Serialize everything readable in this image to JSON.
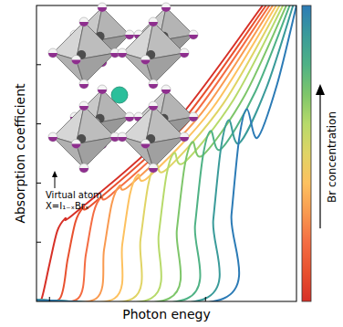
{
  "chart_data": {
    "type": "line",
    "xlabel": "Photon enegy",
    "ylabel": "Absorption coefficient",
    "xlim": [
      0,
      100
    ],
    "ylim": [
      0,
      100
    ],
    "xticks": [
      5,
      65
    ],
    "yticks": [
      20,
      40,
      60,
      80
    ],
    "tick_labels": false,
    "grid": false,
    "colorbar": {
      "label": "Br concentration"
    },
    "annotations": [
      {
        "text": "Virtual atom"
      },
      {
        "text": "X=I₁₋ₓBrₓ"
      }
    ],
    "series": [
      {
        "color": "#d73027",
        "x": [
          0,
          2,
          5,
          8,
          11,
          15,
          51,
          87
        ],
        "values": [
          0.5,
          1,
          12.6,
          23.8,
          28,
          30,
          58,
          100
        ]
      },
      {
        "color": "#e8512f",
        "x": [
          0,
          9,
          12,
          15,
          18,
          22,
          55.2,
          88.3
        ],
        "values": [
          0.5,
          1,
          14.3,
          26.9,
          31.7,
          33.2,
          59.9,
          100
        ]
      },
      {
        "color": "#f46d43",
        "x": [
          0,
          16,
          19,
          22,
          25,
          29,
          59.3,
          89.6
        ],
        "values": [
          0.5,
          1,
          15.9,
          30.1,
          35.4,
          36.3,
          61.8,
          100
        ]
      },
      {
        "color": "#f99a50",
        "x": [
          0,
          23,
          26,
          29,
          32,
          36,
          63.5,
          90.9
        ],
        "values": [
          0.5,
          1,
          17.6,
          33.2,
          39.1,
          39.3,
          63.6,
          100
        ]
      },
      {
        "color": "#fdc15f",
        "x": [
          0,
          30,
          33,
          36,
          39,
          43,
          67.6,
          92.2
        ],
        "values": [
          0.5,
          1,
          19.3,
          36.4,
          42.8,
          42,
          65.2,
          100
        ]
      },
      {
        "color": "#e0d465",
        "x": [
          0,
          37,
          40,
          43,
          46,
          50,
          71.8,
          93.5
        ],
        "values": [
          0.5,
          1,
          20.9,
          39.5,
          46.5,
          44.6,
          66.8,
          100
        ]
      },
      {
        "color": "#b7da6a",
        "x": [
          0,
          44,
          47,
          50,
          53,
          57,
          75.9,
          94.8
        ],
        "values": [
          0.5,
          1,
          22.6,
          42.7,
          50.2,
          47.1,
          68.3,
          100
        ]
      },
      {
        "color": "#7ec66a",
        "x": [
          0,
          51,
          54,
          57,
          60,
          64,
          80.1,
          96.1
        ],
        "values": [
          0.5,
          1,
          24.3,
          45.8,
          53.9,
          49.4,
          69.6,
          100
        ]
      },
      {
        "color": "#4fb285",
        "x": [
          0,
          58,
          61,
          64,
          67,
          71,
          84.2,
          97.4
        ],
        "values": [
          0.5,
          1,
          25.9,
          49,
          57.6,
          51.5,
          70.9,
          100
        ]
      },
      {
        "color": "#3a9b9a",
        "x": [
          0,
          65,
          68,
          71,
          74,
          78,
          88.4,
          98.7
        ],
        "values": [
          0.5,
          1,
          27.6,
          52.1,
          61.3,
          53.5,
          72.1,
          100
        ]
      },
      {
        "color": "#2c7bb6",
        "x": [
          0,
          72,
          75,
          78,
          81,
          85,
          92.5,
          100
        ],
        "values": [
          0.5,
          1,
          29.3,
          55.3,
          65,
          55.3,
          73.2,
          100
        ]
      }
    ]
  }
}
